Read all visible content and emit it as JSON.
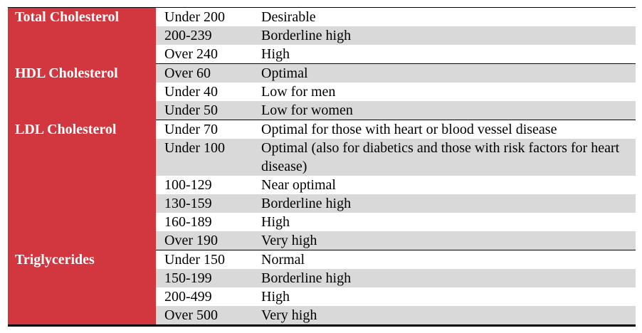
{
  "groups": [
    {
      "name": "Total Cholesterol",
      "rows": [
        [
          "Under 200",
          "Desirable"
        ],
        [
          "200-239",
          "Borderline high"
        ],
        [
          "Over 240",
          "High"
        ]
      ]
    },
    {
      "name": "HDL Cholesterol",
      "rows": [
        [
          "Over 60",
          "Optimal"
        ],
        [
          "Under 40",
          "Low for men"
        ],
        [
          "Under 50",
          "Low for women"
        ]
      ]
    },
    {
      "name": "LDL Cholesterol",
      "rows": [
        [
          "Under 70",
          "Optimal for those with heart or blood vessel disease"
        ],
        [
          "Under 100",
          "Optimal (also for diabetics and those with risk factors for heart disease)"
        ],
        [
          "100-129",
          "Near optimal"
        ],
        [
          "130-159",
          "Borderline high"
        ],
        [
          "160-189",
          "High"
        ],
        [
          "Over 190",
          "Very high"
        ]
      ]
    },
    {
      "name": "Triglycerides",
      "rows": [
        [
          "Under 150",
          "Normal"
        ],
        [
          "150-199",
          "Borderline high"
        ],
        [
          "200-499",
          "High"
        ],
        [
          "Over 500",
          "Very high"
        ]
      ]
    }
  ]
}
